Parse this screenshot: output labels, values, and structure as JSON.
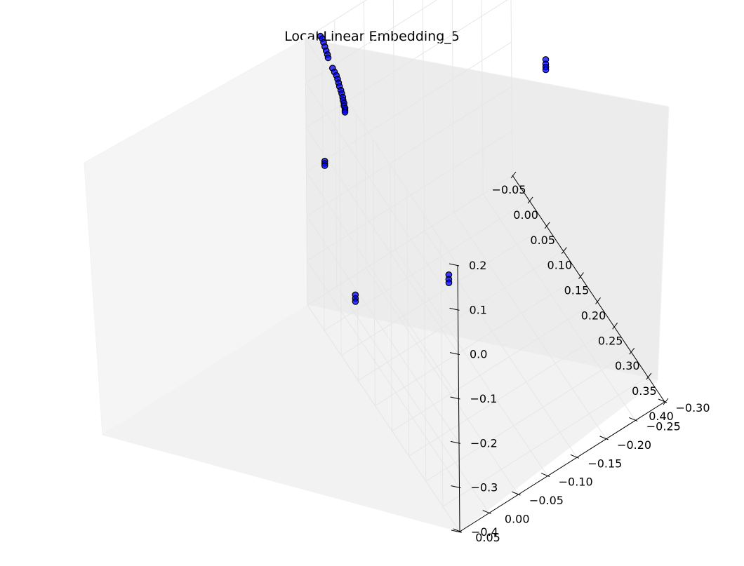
{
  "chart_data": {
    "type": "scatter",
    "projection": "3d",
    "title": "Local Linear Embedding_5",
    "xlabel": "",
    "ylabel": "",
    "zlabel": "",
    "grid": true,
    "xlim": [
      -0.05,
      0.4
    ],
    "ylim": [
      -0.3,
      0.05
    ],
    "zlim": [
      -0.4,
      0.2
    ],
    "x_ticks": [
      "−0.05",
      "0.00",
      "0.05",
      "0.10",
      "0.15",
      "0.20",
      "0.25",
      "0.30",
      "0.35",
      "0.40"
    ],
    "y_ticks": [
      "−0.30",
      "−0.25",
      "−0.20",
      "−0.15",
      "−0.10",
      "−0.05",
      "0.00",
      "0.05"
    ],
    "z_ticks": [
      "−0.4",
      "−0.3",
      "−0.2",
      "−0.1",
      "0.0",
      "0.1",
      "0.2"
    ],
    "marker_color": "#0000ff",
    "edge_color": "#000000",
    "points": [
      {
        "x": -0.04,
        "y": 0.03,
        "z": 0.2
      },
      {
        "x": -0.038,
        "y": 0.028,
        "z": 0.195
      },
      {
        "x": -0.036,
        "y": 0.027,
        "z": 0.188
      },
      {
        "x": -0.034,
        "y": 0.026,
        "z": 0.18
      },
      {
        "x": -0.032,
        "y": 0.025,
        "z": 0.172
      },
      {
        "x": -0.03,
        "y": 0.024,
        "z": 0.165
      },
      {
        "x": -0.028,
        "y": 0.024,
        "z": 0.16
      },
      {
        "x": -0.022,
        "y": 0.02,
        "z": 0.14
      },
      {
        "x": -0.02,
        "y": 0.018,
        "z": 0.132
      },
      {
        "x": -0.018,
        "y": 0.016,
        "z": 0.125
      },
      {
        "x": -0.016,
        "y": 0.015,
        "z": 0.118
      },
      {
        "x": -0.015,
        "y": 0.014,
        "z": 0.11
      },
      {
        "x": -0.014,
        "y": 0.013,
        "z": 0.102
      },
      {
        "x": -0.012,
        "y": 0.012,
        "z": 0.095
      },
      {
        "x": -0.011,
        "y": 0.011,
        "z": 0.088
      },
      {
        "x": -0.01,
        "y": 0.01,
        "z": 0.08
      },
      {
        "x": -0.009,
        "y": 0.01,
        "z": 0.074
      },
      {
        "x": -0.008,
        "y": 0.009,
        "z": 0.068
      },
      {
        "x": -0.008,
        "y": 0.009,
        "z": 0.062
      },
      {
        "x": -0.007,
        "y": 0.008,
        "z": 0.057
      },
      {
        "x": -0.007,
        "y": 0.008,
        "z": 0.052
      },
      {
        "x": -0.007,
        "y": 0.008,
        "z": 0.048
      },
      {
        "x": 0.28,
        "y": -0.003,
        "z": -0.002
      },
      {
        "x": 0.28,
        "y": -0.003,
        "z": -0.012
      },
      {
        "x": 0.28,
        "y": -0.003,
        "z": -0.02
      },
      {
        "x": -0.03,
        "y": 0.03,
        "z": -0.07
      },
      {
        "x": -0.03,
        "y": 0.03,
        "z": -0.075
      },
      {
        "x": -0.03,
        "y": 0.03,
        "z": -0.08
      },
      {
        "x": 0.07,
        "y": -0.29,
        "z": 0.005
      },
      {
        "x": 0.07,
        "y": -0.29,
        "z": -0.005
      },
      {
        "x": 0.07,
        "y": -0.29,
        "z": -0.012
      },
      {
        "x": 0.07,
        "y": -0.29,
        "z": -0.018
      },
      {
        "x": 0.09,
        "y": 0.048,
        "z": -0.22
      },
      {
        "x": 0.09,
        "y": 0.048,
        "z": -0.228
      },
      {
        "x": 0.09,
        "y": 0.048,
        "z": -0.235
      }
    ]
  }
}
